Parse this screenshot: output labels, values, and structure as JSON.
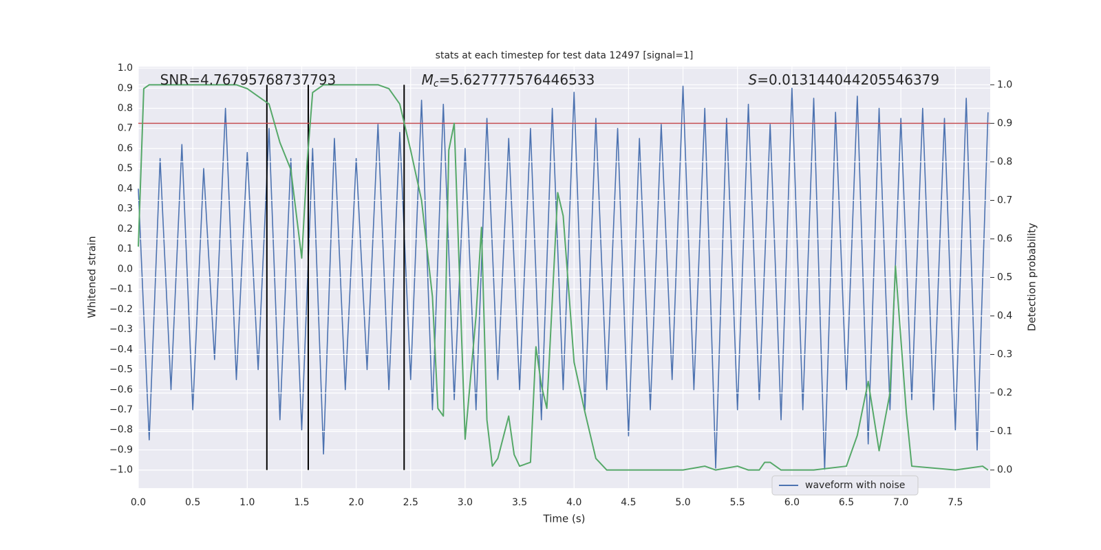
{
  "chart_data": {
    "type": "line",
    "title": "stats at each timestep for test data 12497 [signal=1]",
    "xlabel": "Time (s)",
    "ylabel": "Whitened strain",
    "y2label": "Detection probability",
    "xlim": [
      0,
      7.82
    ],
    "ylim": [
      -1.09,
      1.007
    ],
    "y2lim": [
      -0.047,
      1.047
    ],
    "xticks": [
      {
        "value": 0,
        "label": "0.0"
      },
      0.5,
      {
        "value": 1,
        "label": "1.0"
      },
      1.5,
      {
        "value": 2,
        "label": "2.0"
      },
      2.5,
      {
        "value": 3,
        "label": "3.0"
      },
      3.5,
      {
        "value": 4,
        "label": "4.0"
      },
      4.5,
      {
        "value": 5,
        "label": "5.0"
      },
      5.5,
      {
        "value": 6,
        "label": "6.0"
      },
      6.5,
      {
        "value": 7,
        "label": "7.0"
      },
      7.5
    ],
    "yticks": [
      {
        "value": -1,
        "label": "−1.0"
      },
      {
        "value": -0.9,
        "label": "−0.9"
      },
      {
        "value": -0.8,
        "label": "−0.8"
      },
      {
        "value": -0.7,
        "label": "−0.7"
      },
      {
        "value": -0.6,
        "label": "−0.6"
      },
      {
        "value": -0.5,
        "label": "−0.5"
      },
      {
        "value": -0.4,
        "label": "−0.4"
      },
      {
        "value": -0.3,
        "label": "−0.3"
      },
      {
        "value": -0.2,
        "label": "−0.2"
      },
      {
        "value": -0.1,
        "label": "−0.1"
      },
      {
        "value": 0,
        "label": "0.0"
      },
      0.1,
      0.2,
      0.3,
      0.4,
      0.5,
      0.6,
      0.7,
      0.8,
      0.9,
      {
        "value": 1,
        "label": "1.0"
      }
    ],
    "y2ticks": [
      {
        "value": 0,
        "label": "0.0"
      },
      0.1,
      0.2,
      0.3,
      0.4,
      0.5,
      0.6,
      0.7,
      0.8,
      0.9,
      {
        "value": 1,
        "label": "1.0"
      }
    ],
    "grid": true,
    "legend": "lower right",
    "series": [
      {
        "name": "waveform with noise",
        "color": "#4c72b0",
        "x": [
          0.0,
          0.1,
          0.2,
          0.3,
          0.4,
          0.5,
          0.6,
          0.7,
          0.8,
          0.9,
          1.0,
          1.1,
          1.2,
          1.3,
          1.4,
          1.5,
          1.6,
          1.7,
          1.8,
          1.9,
          2.0,
          2.1,
          2.2,
          2.3,
          2.4,
          2.5,
          2.6,
          2.7,
          2.8,
          2.9,
          3.0,
          3.1,
          3.2,
          3.3,
          3.4,
          3.5,
          3.6,
          3.7,
          3.8,
          3.9,
          4.0,
          4.1,
          4.2,
          4.3,
          4.4,
          4.5,
          4.6,
          4.7,
          4.8,
          4.9,
          5.0,
          5.1,
          5.2,
          5.3,
          5.4,
          5.5,
          5.6,
          5.7,
          5.8,
          5.9,
          6.0,
          6.1,
          6.2,
          6.3,
          6.4,
          6.5,
          6.6,
          6.7,
          6.8,
          6.9,
          7.0,
          7.1,
          7.2,
          7.3,
          7.4,
          7.5,
          7.6,
          7.7,
          7.8
        ],
        "values": [
          0.4,
          -0.85,
          0.55,
          -0.6,
          0.62,
          -0.7,
          0.5,
          -0.45,
          0.8,
          -0.55,
          0.58,
          -0.5,
          0.7,
          -0.75,
          0.55,
          -0.8,
          0.6,
          -0.92,
          0.65,
          -0.6,
          0.55,
          -0.5,
          0.72,
          -0.6,
          0.68,
          -0.55,
          0.84,
          -0.7,
          0.82,
          -0.65,
          0.6,
          -0.7,
          0.75,
          -0.55,
          0.65,
          -0.6,
          0.7,
          -0.75,
          0.8,
          -0.6,
          0.88,
          -0.7,
          0.75,
          -0.6,
          0.7,
          -0.83,
          0.65,
          -0.7,
          0.72,
          -0.55,
          0.91,
          -0.6,
          0.8,
          -0.99,
          0.75,
          -0.7,
          0.82,
          -0.65,
          0.72,
          -0.75,
          0.9,
          -0.7,
          0.85,
          -1.0,
          0.78,
          -0.6,
          0.86,
          -0.87,
          0.8,
          -0.7,
          0.75,
          -0.65,
          0.8,
          -0.7,
          0.75,
          -0.8,
          0.85,
          -0.9,
          0.78
        ]
      },
      {
        "color": "#55a868",
        "axis": "y2",
        "x": [
          0.0,
          0.05,
          0.1,
          0.5,
          0.9,
          1.0,
          1.1,
          1.2,
          1.3,
          1.4,
          1.5,
          1.55,
          1.6,
          1.7,
          2.0,
          2.2,
          2.3,
          2.4,
          2.5,
          2.6,
          2.7,
          2.75,
          2.8,
          2.85,
          2.9,
          3.0,
          3.1,
          3.15,
          3.2,
          3.25,
          3.3,
          3.4,
          3.45,
          3.5,
          3.6,
          3.65,
          3.7,
          3.75,
          3.85,
          3.9,
          4.0,
          4.1,
          4.2,
          4.3,
          5.0,
          5.2,
          5.3,
          5.5,
          5.6,
          5.7,
          5.75,
          5.8,
          5.9,
          6.2,
          6.5,
          6.6,
          6.7,
          6.8,
          6.9,
          6.95,
          7.05,
          7.1,
          7.5,
          7.75,
          7.8
        ],
        "values": [
          0.58,
          0.99,
          1.0,
          1.0,
          1.0,
          0.99,
          0.97,
          0.95,
          0.85,
          0.78,
          0.55,
          0.8,
          0.98,
          1.0,
          1.0,
          1.0,
          0.99,
          0.95,
          0.83,
          0.7,
          0.45,
          0.16,
          0.14,
          0.83,
          0.9,
          0.08,
          0.4,
          0.63,
          0.13,
          0.01,
          0.03,
          0.14,
          0.04,
          0.01,
          0.02,
          0.32,
          0.22,
          0.16,
          0.72,
          0.66,
          0.28,
          0.15,
          0.03,
          0.0,
          0.0,
          0.01,
          0.0,
          0.01,
          0.0,
          0.0,
          0.02,
          0.02,
          0.0,
          0.0,
          0.01,
          0.09,
          0.23,
          0.05,
          0.2,
          0.53,
          0.15,
          0.01,
          0.0,
          0.01,
          0.0
        ]
      }
    ],
    "threshold": {
      "value": 0.9,
      "axis": "y2",
      "color": "#c44e52"
    },
    "vlines": [
      1.18,
      1.56,
      2.44
    ],
    "annotations": [
      {
        "text": "SNR=4.76795768737793",
        "x": 0.2
      },
      {
        "italic": "M",
        "sub": "c",
        "text": "=5.627777576446533",
        "x": 2.6
      },
      {
        "italic": "S",
        "text": "=0.013144044205546379",
        "x": 5.6
      }
    ]
  }
}
